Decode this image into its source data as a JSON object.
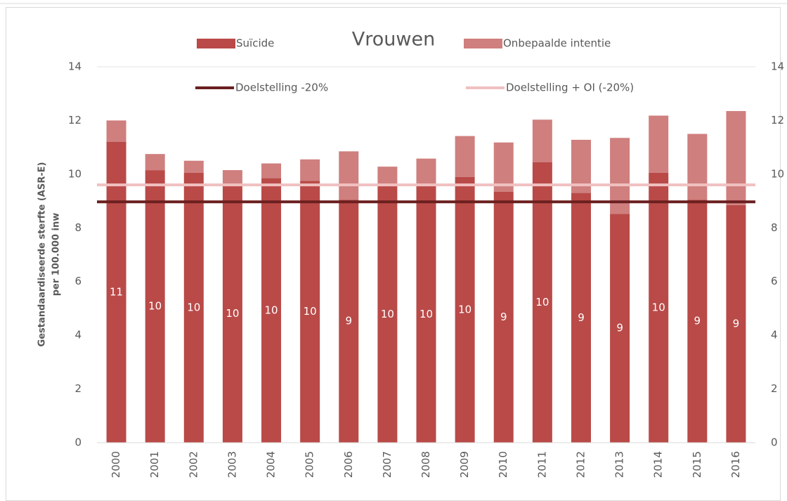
{
  "chart_data": {
    "type": "stacked_bar",
    "title": "Vrouwen",
    "ylabel": [
      "Gestandaardiseerde sterfte (ASR-E)",
      "per 100.000 inw"
    ],
    "categories": [
      "2000",
      "2001",
      "2002",
      "2003",
      "2004",
      "2005",
      "2006",
      "2007",
      "2008",
      "2009",
      "2010",
      "2011",
      "2012",
      "2013",
      "2014",
      "2015",
      "2016"
    ],
    "series": [
      {
        "name": "Suïcide",
        "color": "#b94a48",
        "values": [
          11.2,
          10.15,
          10.05,
          9.6,
          9.85,
          9.75,
          9.05,
          9.55,
          9.55,
          9.9,
          9.35,
          10.45,
          9.3,
          8.52,
          10.05,
          9.05,
          8.85
        ],
        "value_labels": [
          "11",
          "10",
          "10",
          "10",
          "10",
          "10",
          "9",
          "10",
          "10",
          "10",
          "9",
          "10",
          "9",
          "9",
          "10",
          "9",
          "9"
        ]
      },
      {
        "name": "Onbepaalde intentie",
        "color": "#cf7f7e",
        "values": [
          0.8,
          0.6,
          0.45,
          0.55,
          0.55,
          0.8,
          1.8,
          0.73,
          1.03,
          1.52,
          1.83,
          1.58,
          1.98,
          2.83,
          2.13,
          2.45,
          3.5
        ]
      }
    ],
    "reference_lines": [
      {
        "name": "Doelstelling -20%",
        "color": "#6b1f1f",
        "value": 8.97
      },
      {
        "name": "Doelstelling + OI (-20%)",
        "color": "#f0c0c0",
        "value": 9.6
      }
    ],
    "ylim": [
      0,
      14
    ],
    "yticks": [
      0,
      2,
      4,
      6,
      8,
      10,
      12,
      14
    ],
    "y2lim": [
      0,
      14
    ],
    "y2ticks": [
      0,
      2,
      4,
      6,
      8,
      10,
      12,
      14
    ],
    "grid": false
  }
}
